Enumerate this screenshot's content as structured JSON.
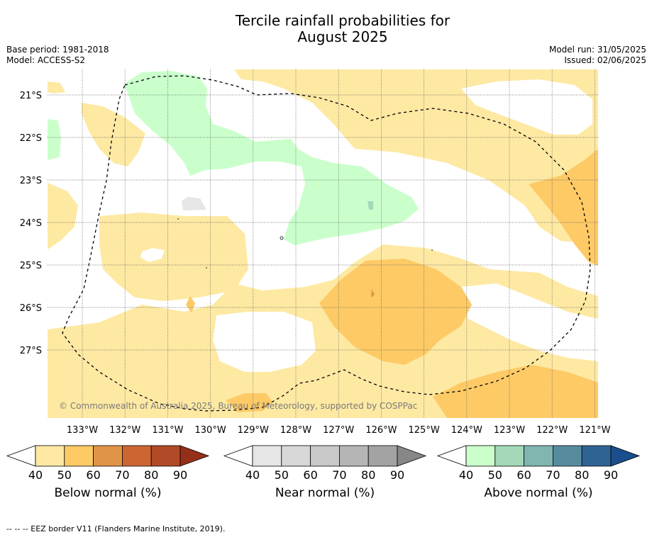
{
  "title_line1": "Tercile rainfall probabilities for",
  "title_line2": "August 2025",
  "meta_left": {
    "base_period": "Base period: 1981-2018",
    "model": "Model: ACCESS-S2"
  },
  "meta_right": {
    "model_run": "Model run: 31/05/2025",
    "issued": "Issued: 02/06/2025"
  },
  "lat_labels": [
    "21°S",
    "22°S",
    "23°S",
    "24°S",
    "25°S",
    "26°S",
    "27°S"
  ],
  "lon_labels": [
    "133°W",
    "132°W",
    "131°W",
    "130°W",
    "129°W",
    "128°W",
    "127°W",
    "126°W",
    "125°W",
    "124°W",
    "123°W",
    "122°W",
    "121°W"
  ],
  "copyright": "© Commonwealth of Australia 2025, Bureau of Meteorology, supported by COSPPac",
  "colorbars": [
    {
      "title": "Below normal (%)",
      "ticks": [
        "40",
        "50",
        "60",
        "70",
        "80",
        "90"
      ],
      "colors": [
        "#fee9a3",
        "#fdca66",
        "#e09447",
        "#cd6532",
        "#b14a26",
        "#94301a"
      ]
    },
    {
      "title": "Near normal (%)",
      "ticks": [
        "40",
        "50",
        "60",
        "70",
        "80",
        "90"
      ],
      "colors": [
        "#e6e6e6",
        "#d7d7d7",
        "#c8c8c8",
        "#b5b5b5",
        "#a3a3a3",
        "#878787"
      ]
    },
    {
      "title": "Above normal (%)",
      "ticks": [
        "40",
        "50",
        "60",
        "70",
        "80",
        "90"
      ],
      "colors": [
        "#caffcc",
        "#a3d8b8",
        "#80b5b0",
        "#568c9e",
        "#2f6394",
        "#1a4e8c"
      ]
    }
  ],
  "footer": "--  --  -- EEZ border V11 (Flanders Marine Institute, 2019)."
}
